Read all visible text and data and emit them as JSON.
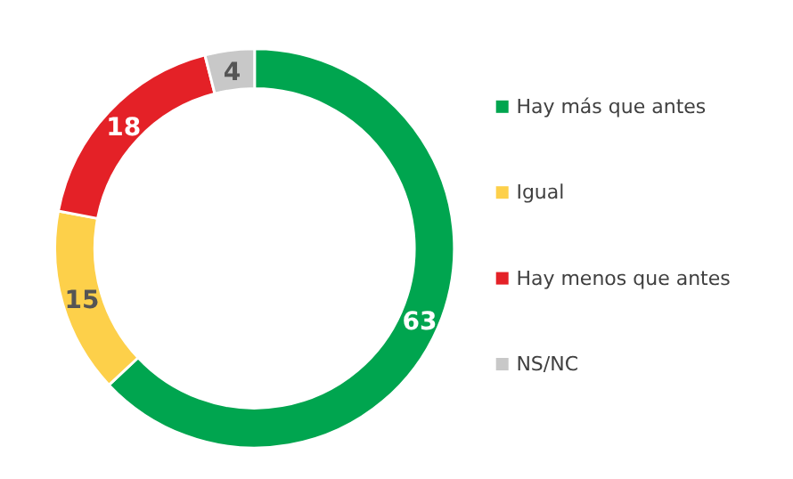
{
  "chart_data": {
    "type": "donut",
    "categories": [
      "Hay más que antes",
      "Igual",
      "Hay menos que antes",
      "NS/NC"
    ],
    "values": [
      63,
      15,
      18,
      4
    ],
    "colors": [
      "#00a54f",
      "#fdd04a",
      "#e42127",
      "#c8c8c8"
    ],
    "data_labels": true,
    "legend": "right"
  }
}
